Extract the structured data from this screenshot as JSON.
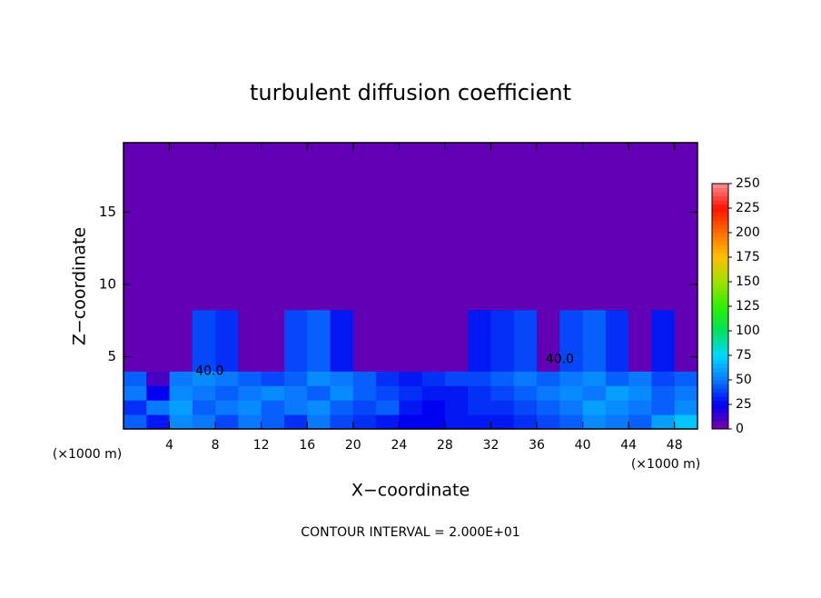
{
  "chart_data": {
    "type": "contour",
    "title": "turbulent diffusion coefficient",
    "xlabel": "X−coordinate",
    "ylabel": "Z−coordinate",
    "x_unit_labels": [
      "(×1000 m)",
      "(×1000 m)"
    ],
    "annotation": "CONTOUR INTERVAL = 2.000E+01",
    "xlim": [
      0,
      50
    ],
    "xticks": [
      4,
      8,
      12,
      16,
      20,
      24,
      28,
      32,
      36,
      40,
      44,
      48
    ],
    "ylim": [
      0,
      19.8
    ],
    "yticks": [
      5,
      10,
      15
    ],
    "clim": [
      0,
      250
    ],
    "cticks": [
      0,
      25,
      50,
      75,
      100,
      125,
      150,
      175,
      200,
      225,
      250
    ],
    "colormap": [
      {
        "value": 0,
        "color": "#7b00a6"
      },
      {
        "value": 25,
        "color": "#0000f0"
      },
      {
        "value": 50,
        "color": "#0a78ff"
      },
      {
        "value": 75,
        "color": "#00d8ff"
      },
      {
        "value": 100,
        "color": "#00e060"
      },
      {
        "value": 125,
        "color": "#30f000"
      },
      {
        "value": 150,
        "color": "#a0e000"
      },
      {
        "value": 175,
        "color": "#ffc000"
      },
      {
        "value": 200,
        "color": "#ff7000"
      },
      {
        "value": 225,
        "color": "#ff1000"
      },
      {
        "value": 250,
        "color": "#ff9090"
      }
    ],
    "field": {
      "x": [
        1,
        3,
        5,
        7,
        9,
        11,
        13,
        15,
        17,
        19,
        21,
        23,
        25,
        27,
        29,
        31,
        33,
        35,
        37,
        39,
        41,
        43,
        45,
        47,
        49
      ],
      "z": [
        0.5,
        1.5,
        2.5,
        3.5,
        4.5,
        12
      ],
      "values": [
        [
          45,
          30,
          55,
          50,
          40,
          50,
          45,
          35,
          50,
          40,
          35,
          30,
          25,
          25,
          30,
          30,
          30,
          35,
          40,
          45,
          55,
          50,
          45,
          60,
          70
        ],
        [
          35,
          50,
          60,
          45,
          50,
          55,
          45,
          50,
          55,
          45,
          40,
          45,
          30,
          25,
          30,
          35,
          35,
          40,
          45,
          50,
          60,
          55,
          50,
          45,
          55
        ],
        [
          50,
          25,
          55,
          50,
          45,
          50,
          55,
          50,
          45,
          55,
          45,
          40,
          35,
          30,
          30,
          35,
          40,
          45,
          50,
          55,
          50,
          60,
          55,
          45,
          50
        ],
        [
          45,
          10,
          50,
          55,
          50,
          45,
          40,
          45,
          55,
          50,
          45,
          35,
          30,
          35,
          40,
          40,
          45,
          50,
          45,
          50,
          55,
          45,
          50,
          40,
          45
        ],
        [
          5,
          5,
          5,
          40,
          35,
          5,
          5,
          40,
          45,
          30,
          5,
          5,
          5,
          5,
          5,
          30,
          35,
          40,
          5,
          40,
          45,
          35,
          5,
          30,
          5
        ],
        [
          5,
          5,
          5,
          5,
          5,
          5,
          5,
          5,
          5,
          5,
          5,
          5,
          5,
          5,
          5,
          5,
          5,
          5,
          5,
          5,
          5,
          5,
          5,
          5,
          5
        ]
      ]
    },
    "contour_labels": [
      {
        "value": 40,
        "label": "40.0",
        "x": 7.5,
        "z": 4
      },
      {
        "value": 40,
        "label": "40.0",
        "x": 38,
        "z": 4.8
      }
    ]
  }
}
